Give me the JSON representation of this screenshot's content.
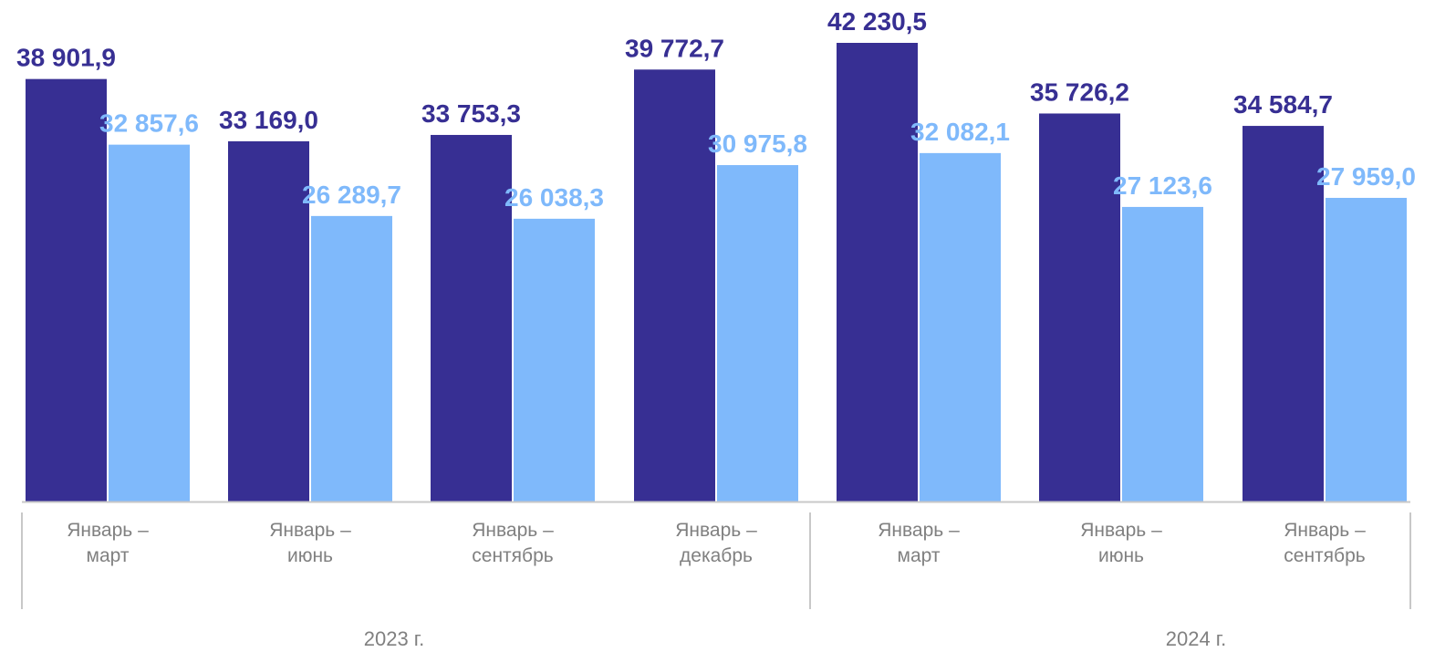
{
  "chart_data": {
    "type": "bar",
    "categories": [
      [
        "Январь –",
        "март"
      ],
      [
        "Январь –",
        "июнь"
      ],
      [
        "Январь –",
        "сентябрь"
      ],
      [
        "Январь –",
        "декабрь"
      ],
      [
        "Январь –",
        "март"
      ],
      [
        "Январь –",
        "июнь"
      ],
      [
        "Январь –",
        "сентябрь"
      ]
    ],
    "groups": [
      {
        "label": "2023 г.",
        "span": [
          0,
          3
        ]
      },
      {
        "label": "2024 г.",
        "span": [
          4,
          6
        ]
      }
    ],
    "series": [
      {
        "color": "#372f93",
        "values": [
          38901.9,
          33169.0,
          33753.3,
          39772.7,
          42230.5,
          35726.2,
          34584.7
        ],
        "labels": [
          "38 901,9",
          "33 169,0",
          "33 753,3",
          "39 772,7",
          "42 230,5",
          "35 726,2",
          "34 584,7"
        ]
      },
      {
        "color": "#7fb9fb",
        "values": [
          32857.6,
          26289.7,
          26038.3,
          30975.8,
          32082.1,
          27123.6,
          27959.0
        ],
        "labels": [
          "32 857,6",
          "26 289,7",
          "26 038,3",
          "30 975,8",
          "32 082,1",
          "27 123,6",
          "27 959,0"
        ]
      }
    ],
    "title": "",
    "xlabel": "",
    "ylabel": "",
    "ylim": [
      0,
      42230.5
    ],
    "grid": false,
    "legend": "none",
    "axis_color": "#c8c8c8",
    "label_colors": [
      "#372f93",
      "#7fb9fb"
    ]
  }
}
